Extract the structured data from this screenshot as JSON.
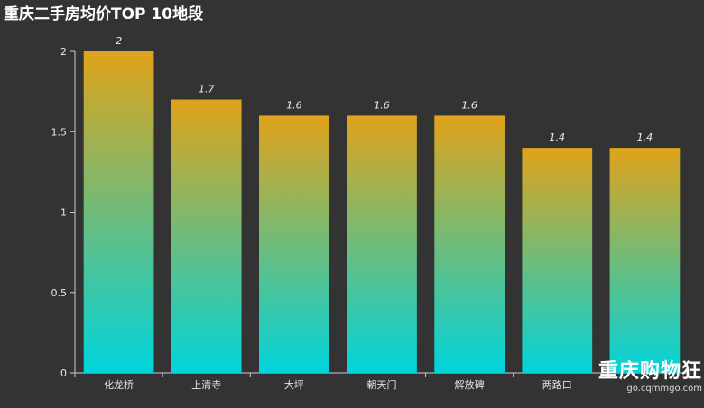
{
  "chart_data": {
    "type": "bar",
    "title": "重庆二手房均价TOP 10地段",
    "xlabel": "",
    "ylabel": "",
    "categories": [
      "化龙桥",
      "上清寺",
      "大坪",
      "朝天门",
      "解放碑",
      "两路口",
      ""
    ],
    "values": [
      2,
      1.7,
      1.6,
      1.6,
      1.6,
      1.4,
      1.4
    ],
    "data_labels": [
      "2",
      "1.7",
      "1.6",
      "1.6",
      "1.6",
      "1.4",
      "1.4"
    ],
    "ylim": [
      0,
      2
    ],
    "yticks": [
      "0",
      "0.5",
      "1",
      "1.5",
      "2"
    ],
    "grid": false,
    "bar_gradient": {
      "top": "#e0a31a",
      "bottom": "#00d4db"
    }
  },
  "watermark": {
    "main": "重庆购物狂",
    "sub": "go.cqmmgo.com"
  },
  "colors": {
    "background": "#333333",
    "axis": "#cccccc",
    "text": "#e6e6e6"
  }
}
